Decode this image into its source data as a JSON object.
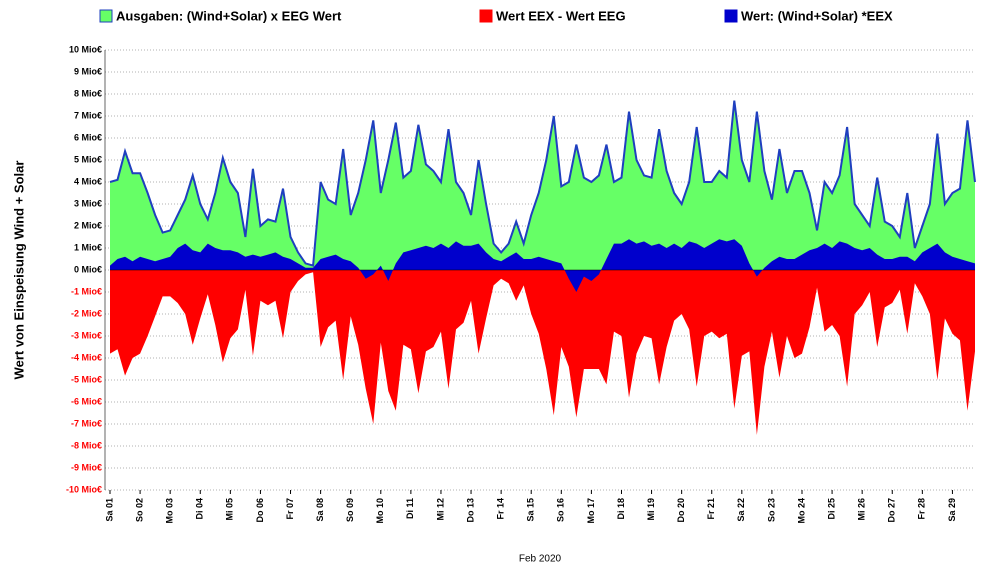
{
  "chart_data": {
    "type": "area",
    "ylabel": "Wert von Einspeisung Wind + Solar",
    "xlabel": "Feb 2020",
    "ylim": [
      -10,
      10
    ],
    "yticks": [
      {
        "value": 10,
        "label": "10 Mio€"
      },
      {
        "value": 9,
        "label": "9 Mio€"
      },
      {
        "value": 8,
        "label": "8 Mio€"
      },
      {
        "value": 7,
        "label": "7 Mio€"
      },
      {
        "value": 6,
        "label": "6 Mio€"
      },
      {
        "value": 5,
        "label": "5 Mio€"
      },
      {
        "value": 4,
        "label": "4 Mio€"
      },
      {
        "value": 3,
        "label": "3 Mio€"
      },
      {
        "value": 2,
        "label": "2 Mio€"
      },
      {
        "value": 1,
        "label": "1 Mio€"
      },
      {
        "value": 0,
        "label": "0 Mio€"
      },
      {
        "value": -1,
        "label": "-1 Mio€"
      },
      {
        "value": -2,
        "label": "-2 Mio€"
      },
      {
        "value": -3,
        "label": "-3 Mio€"
      },
      {
        "value": -4,
        "label": "-4 Mio€"
      },
      {
        "value": -5,
        "label": "-5 Mio€"
      },
      {
        "value": -6,
        "label": "-6 Mio€"
      },
      {
        "value": -7,
        "label": "-7 Mio€"
      },
      {
        "value": -8,
        "label": "-8 Mio€"
      },
      {
        "value": -9,
        "label": "-9 Mio€"
      },
      {
        "value": -10,
        "label": "-10 Mio€"
      }
    ],
    "grid": true,
    "categories": [
      "Sa 01",
      null,
      null,
      null,
      "So 02",
      null,
      null,
      null,
      "Mo 03",
      null,
      null,
      null,
      "Di 04",
      null,
      null,
      null,
      "Mi 05",
      null,
      null,
      null,
      "Do 06",
      null,
      null,
      null,
      "Fr 07",
      null,
      null,
      null,
      "Sa 08",
      null,
      null,
      null,
      "So 09",
      null,
      null,
      null,
      "Mo 10",
      null,
      null,
      null,
      "Di 11",
      null,
      null,
      null,
      "Mi 12",
      null,
      null,
      null,
      "Do 13",
      null,
      null,
      null,
      "Fr 14",
      null,
      null,
      null,
      "Sa 15",
      null,
      null,
      null,
      "So 16",
      null,
      null,
      null,
      "Mo 17",
      null,
      null,
      null,
      "Di 18",
      null,
      null,
      null,
      "Mi 19",
      null,
      null,
      null,
      "Do 20",
      null,
      null,
      null,
      "Fr 21",
      null,
      null,
      null,
      "Sa 22",
      null,
      null,
      null,
      "So 23",
      null,
      null,
      null,
      "Mo 24",
      null,
      null,
      null,
      "Di 25",
      null,
      null,
      null,
      "Mi 26",
      null,
      null,
      null,
      "Do 27",
      null,
      null,
      null,
      "Fr 28",
      null,
      null,
      null,
      "Sa 29",
      null,
      null,
      null
    ],
    "series": [
      {
        "name": "Ausgaben: (Wind+Solar) x EEG Wert",
        "color": "#66ff66",
        "outline": "#1f3fbf",
        "values": [
          4.0,
          4.1,
          5.4,
          4.4,
          4.4,
          3.5,
          2.5,
          1.7,
          1.8,
          2.5,
          3.2,
          4.3,
          3.0,
          2.3,
          3.5,
          5.1,
          4.0,
          3.5,
          1.5,
          4.6,
          2.0,
          2.3,
          2.2,
          3.7,
          1.5,
          0.8,
          0.3,
          0.2,
          4.0,
          3.2,
          3.0,
          5.5,
          2.5,
          3.5,
          5.0,
          6.8,
          3.5,
          5.0,
          6.7,
          4.2,
          4.5,
          6.6,
          4.8,
          4.5,
          4.0,
          6.4,
          4.0,
          3.5,
          2.5,
          5.0,
          3.0,
          1.2,
          0.8,
          1.2,
          2.2,
          1.2,
          2.5,
          3.5,
          5.0,
          7.0,
          3.8,
          4.0,
          5.7,
          4.2,
          4.0,
          4.3,
          5.7,
          4.0,
          4.2,
          7.2,
          5.0,
          4.3,
          4.2,
          6.4,
          4.5,
          3.5,
          3.0,
          4.0,
          6.5,
          4.0,
          4.0,
          4.5,
          4.2,
          7.7,
          5.0,
          4.0,
          7.2,
          4.5,
          3.2,
          5.5,
          3.5,
          4.5,
          4.5,
          3.5,
          1.8,
          4.0,
          3.5,
          4.3,
          6.5,
          3.0,
          2.5,
          2.0,
          4.2,
          2.2,
          2.0,
          1.5,
          3.5,
          1.0,
          2.0,
          3.0,
          6.2,
          3.0,
          3.5,
          3.7,
          6.8,
          4.0
        ]
      },
      {
        "name": "Wert EEX - Wert EEG",
        "color": "#ff0000",
        "values": [
          -3.8,
          -3.6,
          -4.8,
          -4.0,
          -3.8,
          -3.0,
          -2.1,
          -1.2,
          -1.2,
          -1.5,
          -2.0,
          -3.4,
          -2.2,
          -1.1,
          -2.5,
          -4.2,
          -3.1,
          -2.7,
          -0.9,
          -3.9,
          -1.4,
          -1.6,
          -1.4,
          -3.1,
          -1.0,
          -0.5,
          -0.2,
          -0.1,
          -3.5,
          -2.6,
          -2.3,
          -5.0,
          -2.1,
          -3.4,
          -5.4,
          -7.0,
          -3.3,
          -5.5,
          -6.4,
          -3.4,
          -3.6,
          -5.6,
          -3.7,
          -3.5,
          -2.8,
          -5.4,
          -2.7,
          -2.4,
          -1.4,
          -3.8,
          -2.2,
          -0.7,
          -0.4,
          -0.6,
          -1.4,
          -0.7,
          -2.0,
          -2.9,
          -4.5,
          -6.6,
          -3.5,
          -4.4,
          -6.7,
          -4.5,
          -4.5,
          -4.5,
          -5.2,
          -2.8,
          -3.0,
          -5.8,
          -3.8,
          -3.0,
          -3.1,
          -5.2,
          -3.5,
          -2.3,
          -2.0,
          -2.7,
          -5.3,
          -3.0,
          -2.8,
          -3.1,
          -2.9,
          -6.3,
          -3.9,
          -3.7,
          -7.5,
          -4.4,
          -2.8,
          -4.9,
          -3.0,
          -4.0,
          -3.8,
          -2.6,
          -0.8,
          -2.8,
          -2.5,
          -3.0,
          -5.3,
          -2.0,
          -1.6,
          -1.0,
          -3.5,
          -1.7,
          -1.5,
          -0.9,
          -2.9,
          -0.6,
          -1.2,
          -2.0,
          -5.0,
          -2.2,
          -2.9,
          -3.2,
          -6.4,
          -3.7
        ]
      },
      {
        "name": "Wert: (Wind+Solar) *EEX",
        "color": "#0000cc",
        "values": [
          0.2,
          0.5,
          0.6,
          0.4,
          0.6,
          0.5,
          0.4,
          0.5,
          0.6,
          1.0,
          1.2,
          0.9,
          0.8,
          1.2,
          1.0,
          0.9,
          0.9,
          0.8,
          0.6,
          0.7,
          0.6,
          0.7,
          0.8,
          0.6,
          0.5,
          0.3,
          0.1,
          0.1,
          0.5,
          0.6,
          0.7,
          0.5,
          0.4,
          0.1,
          -0.4,
          -0.2,
          0.2,
          -0.5,
          0.3,
          0.8,
          0.9,
          1.0,
          1.1,
          1.0,
          1.2,
          1.0,
          1.3,
          1.1,
          1.1,
          1.2,
          0.8,
          0.5,
          0.4,
          0.6,
          0.8,
          0.5,
          0.5,
          0.6,
          0.5,
          0.4,
          0.3,
          -0.4,
          -1.0,
          -0.3,
          -0.5,
          -0.2,
          0.5,
          1.2,
          1.2,
          1.4,
          1.2,
          1.3,
          1.1,
          1.2,
          1.0,
          1.2,
          1.0,
          1.3,
          1.2,
          1.0,
          1.2,
          1.4,
          1.3,
          1.4,
          1.1,
          0.3,
          -0.3,
          0.1,
          0.4,
          0.6,
          0.5,
          0.5,
          0.7,
          0.9,
          1.0,
          1.2,
          1.0,
          1.3,
          1.2,
          1.0,
          0.9,
          1.0,
          0.7,
          0.5,
          0.5,
          0.6,
          0.6,
          0.4,
          0.8,
          1.0,
          1.2,
          0.8,
          0.6,
          0.5,
          0.4,
          0.3
        ]
      }
    ]
  }
}
